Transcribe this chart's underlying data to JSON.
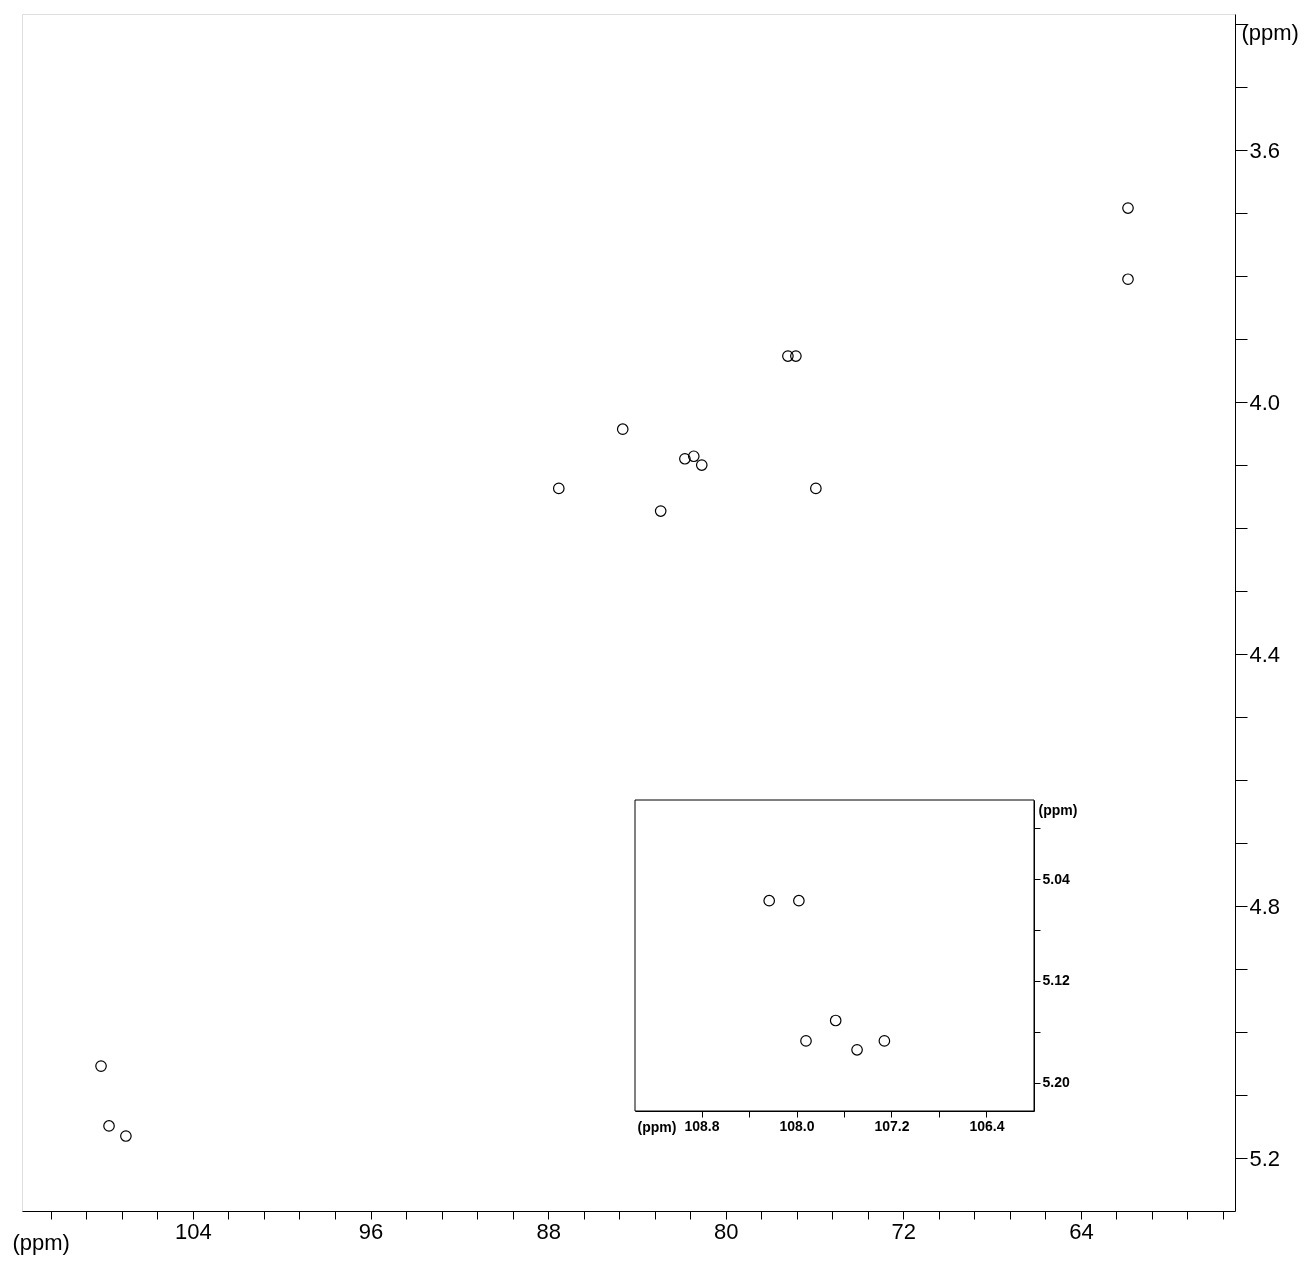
{
  "chart_data": [
    {
      "type": "scatter",
      "xlabel": "(ppm)",
      "ylabel": "(ppm)",
      "marker": "circle",
      "xlim": [
        111.7,
        57.06
      ],
      "ylim": [
        5.284,
        3.384
      ],
      "xticks": [
        {
          "value": 110.4,
          "label": null
        },
        {
          "value": 108.8,
          "label": null
        },
        {
          "value": 107.2,
          "label": null
        },
        {
          "value": 105.6,
          "label": null
        },
        104,
        {
          "value": 102.4,
          "label": null
        },
        {
          "value": 100.8,
          "label": null
        },
        {
          "value": 99.2,
          "label": null
        },
        {
          "value": 97.6,
          "label": null
        },
        96,
        {
          "value": 94.4,
          "label": null
        },
        {
          "value": 92.8,
          "label": null
        },
        {
          "value": 91.2,
          "label": null
        },
        {
          "value": 89.6,
          "label": null
        },
        88,
        {
          "value": 86.4,
          "label": null
        },
        {
          "value": 84.8,
          "label": null
        },
        {
          "value": 83.2,
          "label": null
        },
        {
          "value": 81.6,
          "label": null
        },
        80,
        {
          "value": 78.4,
          "label": null
        },
        {
          "value": 76.8,
          "label": null
        },
        {
          "value": 75.2,
          "label": null
        },
        {
          "value": 73.6,
          "label": null
        },
        72,
        {
          "value": 70.4,
          "label": null
        },
        {
          "value": 68.8,
          "label": null
        },
        {
          "value": 67.2,
          "label": null
        },
        {
          "value": 65.6,
          "label": null
        },
        64,
        {
          "value": 62.4,
          "label": null
        },
        {
          "value": 60.8,
          "label": null
        },
        {
          "value": 59.2,
          "label": null
        },
        {
          "value": 57.6,
          "label": null
        }
      ],
      "yticks": [
        {
          "value": 3.4,
          "label": null
        },
        {
          "value": 3.5,
          "label": null
        },
        3.6,
        {
          "value": 3.7,
          "label": null
        },
        {
          "value": 3.8,
          "label": null
        },
        {
          "value": 3.9,
          "label": null
        },
        {
          "value": 4.0,
          "label": "4.0"
        },
        {
          "value": 4.1,
          "label": null
        },
        {
          "value": 4.2,
          "label": null
        },
        {
          "value": 4.3,
          "label": null
        },
        4.4,
        {
          "value": 4.5,
          "label": null
        },
        {
          "value": 4.6,
          "label": null
        },
        {
          "value": 4.7,
          "label": null
        },
        4.8,
        {
          "value": 4.9,
          "label": null
        },
        {
          "value": 5.0,
          "label": null
        },
        {
          "value": 5.1,
          "label": null
        },
        5.2
      ],
      "x": [
        108.14,
        107.78,
        107.02,
        87.52,
        84.64,
        82.93,
        81.84,
        81.44,
        81.08,
        77.2,
        76.84,
        75.94,
        61.88,
        61.88
      ],
      "values": [
        5.054,
        5.149,
        5.165,
        4.137,
        4.043,
        4.173,
        4.09,
        4.086,
        4.1,
        3.927,
        3.927,
        4.137,
        3.692,
        3.805
      ]
    },
    {
      "type": "scatter",
      "xlabel": "(ppm)",
      "ylabel": "(ppm)",
      "marker": "circle",
      "xlim": [
        109.36,
        106.0
      ],
      "ylim": [
        5.222,
        4.978
      ],
      "xticks": [
        108.8,
        {
          "value": 108.4,
          "label": null
        },
        {
          "value": 108.0,
          "label": "108.0"
        },
        {
          "value": 107.6,
          "label": null
        },
        107.2,
        {
          "value": 106.8,
          "label": null
        },
        106.4
      ],
      "yticks": [
        {
          "value": 5.0,
          "label": null
        },
        5.04,
        {
          "value": 5.08,
          "label": null
        },
        5.12,
        {
          "value": 5.16,
          "label": null
        },
        {
          "value": 5.2,
          "label": "5.20"
        }
      ],
      "x": [
        108.23,
        107.98,
        107.92,
        107.67,
        107.49,
        107.26
      ],
      "values": [
        5.057,
        5.057,
        5.167,
        5.151,
        5.174,
        5.167
      ]
    }
  ]
}
